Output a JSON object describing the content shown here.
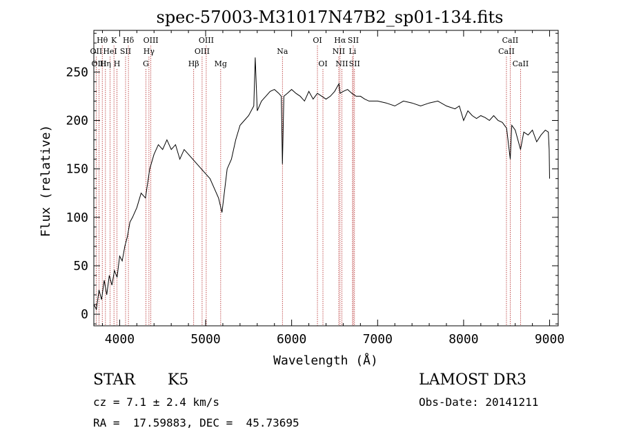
{
  "chart_data": {
    "type": "line",
    "title": "spec-57003-M31017N47B2_sp01-134.fits",
    "xlabel": "Wavelength (Å)",
    "ylabel": "Flux (relative)",
    "xlim": [
      3700,
      9100
    ],
    "ylim": [
      -12,
      293
    ],
    "x_ticks": [
      4000,
      5000,
      6000,
      7000,
      8000,
      9000
    ],
    "x_tick_labels": [
      "4000",
      "5000",
      "6000",
      "7000",
      "8000",
      "9000"
    ],
    "y_ticks": [
      0,
      50,
      100,
      150,
      200,
      250
    ],
    "y_tick_labels": [
      "0",
      "50",
      "100",
      "150",
      "200",
      "250"
    ],
    "grid": false,
    "series": [
      {
        "x": [
          3700,
          3730,
          3760,
          3790,
          3820,
          3850,
          3880,
          3910,
          3940,
          3970,
          4000,
          4030,
          4060,
          4090,
          4120,
          4150,
          4200,
          4250,
          4300,
          4350,
          4400,
          4450,
          4500,
          4550,
          4600,
          4650,
          4700,
          4750,
          4800,
          4850,
          4900,
          4950,
          5000,
          5050,
          5100,
          5150,
          5190,
          5250,
          5300,
          5350,
          5400,
          5450,
          5500,
          5560,
          5577,
          5600,
          5650,
          5700,
          5750,
          5800,
          5850,
          5880,
          5893,
          5910,
          5950,
          6000,
          6050,
          6100,
          6150,
          6200,
          6250,
          6300,
          6350,
          6400,
          6450,
          6500,
          6550,
          6563,
          6600,
          6650,
          6700,
          6750,
          6800,
          6850,
          6900,
          7000,
          7100,
          7200,
          7300,
          7400,
          7500,
          7600,
          7700,
          7800,
          7900,
          7950,
          8000,
          8050,
          8100,
          8150,
          8200,
          8250,
          8300,
          8350,
          8400,
          8450,
          8500,
          8542,
          8560,
          8600,
          8662,
          8700,
          8750,
          8800,
          8850,
          8900,
          8950,
          8985,
          8995,
          9000
        ],
        "y": [
          10,
          5,
          25,
          15,
          35,
          20,
          40,
          30,
          45,
          38,
          60,
          55,
          70,
          80,
          95,
          100,
          110,
          125,
          120,
          150,
          165,
          175,
          170,
          180,
          170,
          175,
          160,
          170,
          165,
          160,
          155,
          150,
          145,
          140,
          130,
          120,
          105,
          150,
          160,
          180,
          195,
          200,
          205,
          215,
          265,
          210,
          220,
          225,
          230,
          232,
          228,
          225,
          155,
          225,
          228,
          232,
          228,
          225,
          220,
          230,
          222,
          228,
          225,
          222,
          225,
          230,
          238,
          228,
          230,
          232,
          228,
          225,
          225,
          222,
          220,
          220,
          218,
          215,
          220,
          218,
          215,
          218,
          220,
          215,
          212,
          215,
          200,
          210,
          205,
          202,
          205,
          203,
          200,
          205,
          200,
          198,
          192,
          160,
          195,
          190,
          170,
          188,
          185,
          190,
          178,
          185,
          190,
          188,
          170,
          140
        ]
      }
    ],
    "line_markers": [
      {
        "label": "Hθ",
        "wavelength": 3798,
        "row": 1
      },
      {
        "label": "OII",
        "wavelength": 3727,
        "row": 2
      },
      {
        "label": "OIII",
        "wavelength": 3760,
        "row": 3
      },
      {
        "label": "K",
        "wavelength": 3934,
        "row": 1
      },
      {
        "label": "HeI",
        "wavelength": 3889,
        "row": 2
      },
      {
        "label": "Hη",
        "wavelength": 3835,
        "row": 3
      },
      {
        "label": "SII",
        "wavelength": 4069,
        "row": 2
      },
      {
        "label": "H",
        "wavelength": 3969,
        "row": 3
      },
      {
        "label": "Hδ",
        "wavelength": 4102,
        "row": 1
      },
      {
        "label": "OIII",
        "wavelength": 4363,
        "row": 1
      },
      {
        "label": "Hγ",
        "wavelength": 4341,
        "row": 2
      },
      {
        "label": "G",
        "wavelength": 4305,
        "row": 3
      },
      {
        "label": "OIII",
        "wavelength": 5007,
        "row": 1
      },
      {
        "label": "OIII",
        "wavelength": 4959,
        "row": 2
      },
      {
        "label": "Hβ",
        "wavelength": 4861,
        "row": 3
      },
      {
        "label": "Mg",
        "wavelength": 5175,
        "row": 3
      },
      {
        "label": "Na",
        "wavelength": 5893,
        "row": 2
      },
      {
        "label": "OI",
        "wavelength": 6300,
        "row": 1
      },
      {
        "label": "OI",
        "wavelength": 6364,
        "row": 3
      },
      {
        "label": "Hα",
        "wavelength": 6563,
        "row": 1
      },
      {
        "label": "SII",
        "wavelength": 6717,
        "row": 1
      },
      {
        "label": "NII",
        "wavelength": 6548,
        "row": 2
      },
      {
        "label": "Li",
        "wavelength": 6708,
        "row": 2
      },
      {
        "label": "NII",
        "wavelength": 6584,
        "row": 3
      },
      {
        "label": "SII",
        "wavelength": 6731,
        "row": 3
      },
      {
        "label": "CaII",
        "wavelength": 8542,
        "row": 1
      },
      {
        "label": "CaII",
        "wavelength": 8498,
        "row": 2
      },
      {
        "label": "CaII",
        "wavelength": 8662,
        "row": 3
      }
    ],
    "marker_color": "#b22222",
    "line_color": "#000000"
  },
  "info": {
    "object_class": "STAR",
    "subclass": "K5",
    "cz": "cz = 7.1 ± 2.4 km/s",
    "coords": "RA =  17.59883, DEC =  45.73695",
    "survey": "LAMOST DR3",
    "obs_date": "Obs-Date: 20141211"
  }
}
